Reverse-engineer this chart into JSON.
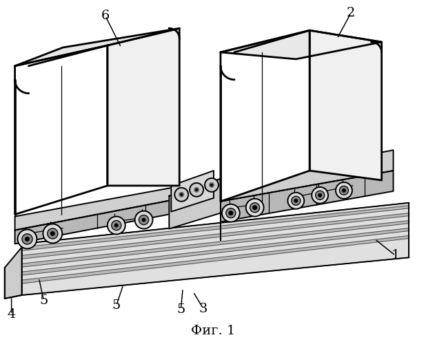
{
  "title": "Фиг. 1",
  "bg": "#ffffff",
  "lc": "#000000",
  "lw_thick": 2.0,
  "lw_med": 1.4,
  "lw_thin": 0.9,
  "lw_vt": 0.6
}
